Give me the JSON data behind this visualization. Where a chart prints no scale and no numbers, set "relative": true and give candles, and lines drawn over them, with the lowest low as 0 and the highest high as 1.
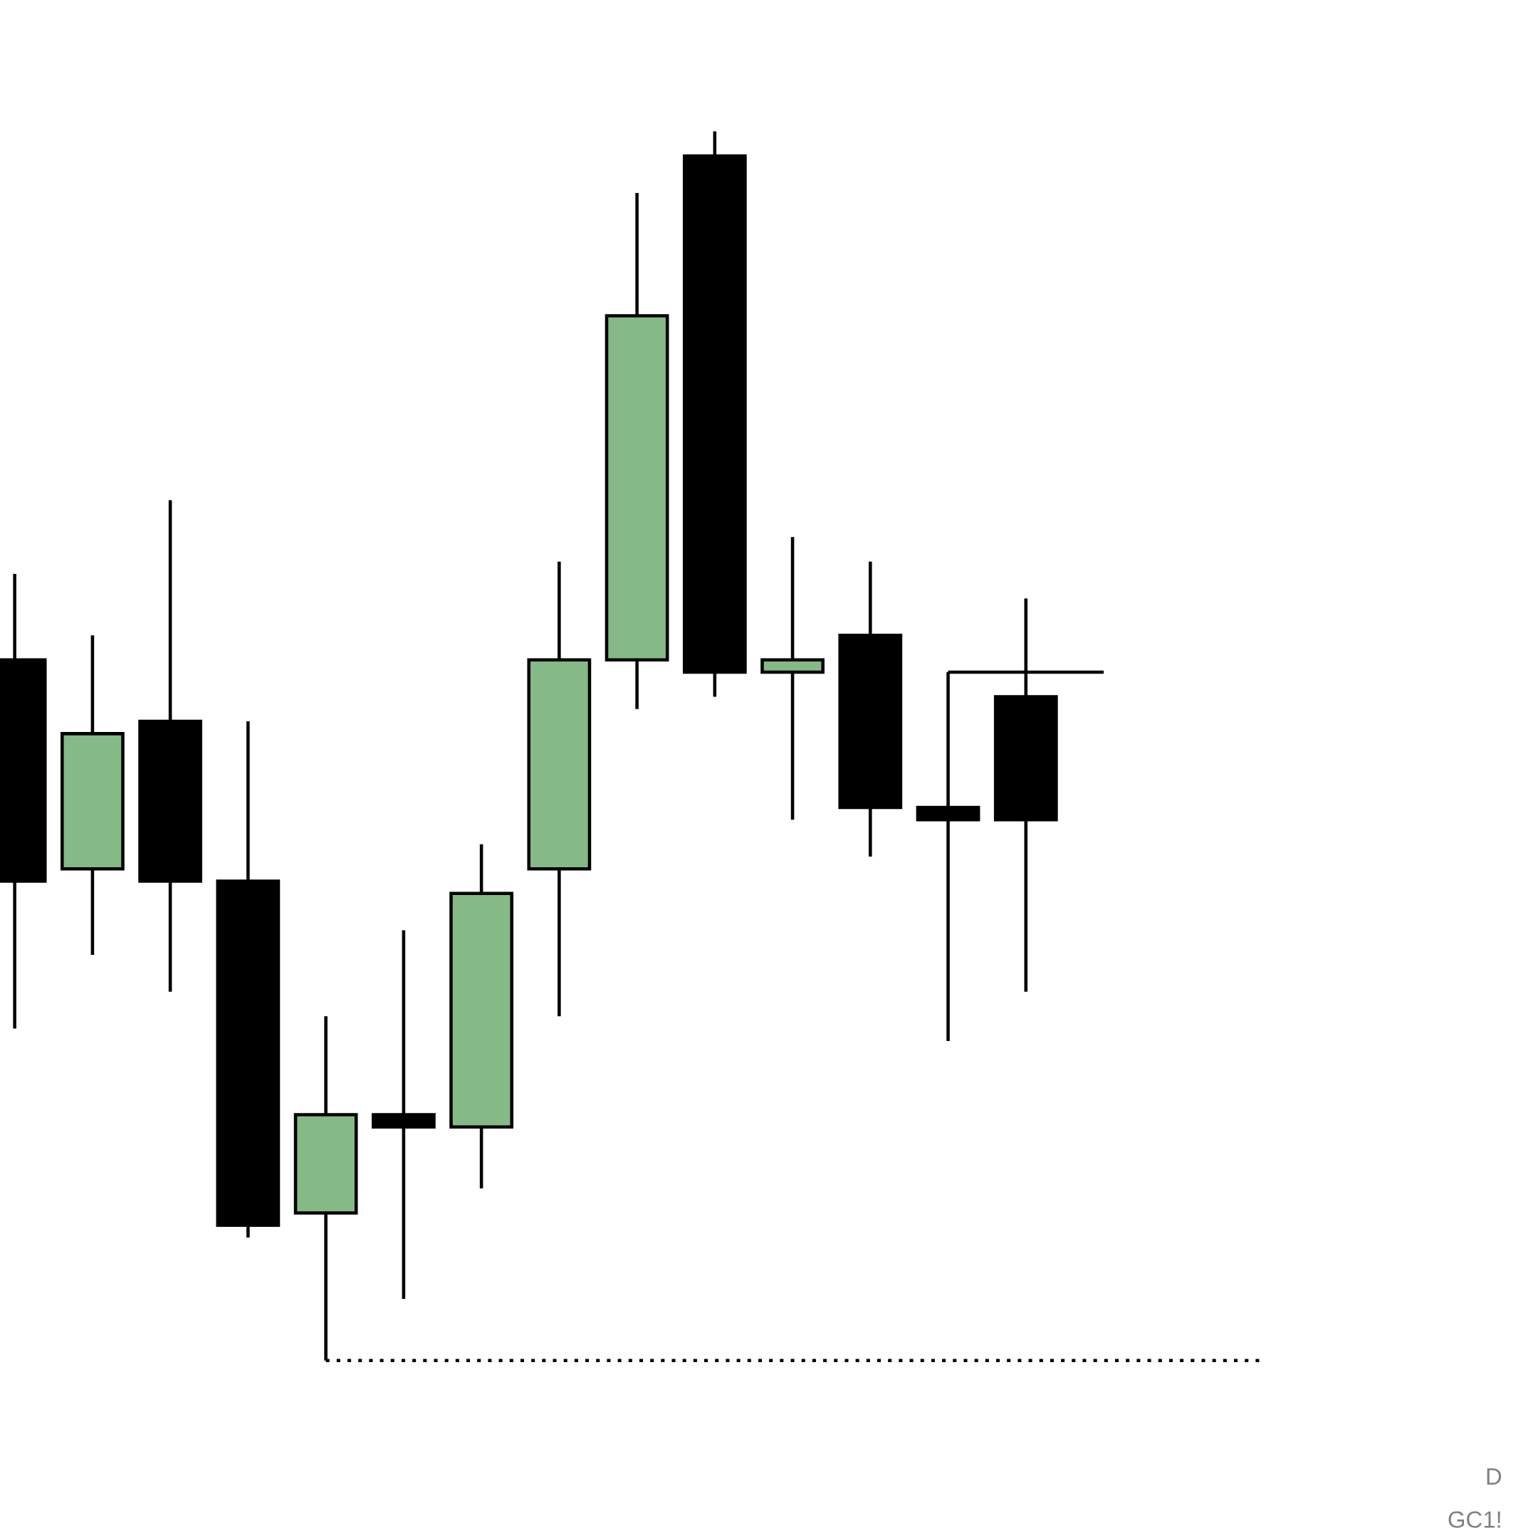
{
  "chart_data": {
    "type": "candlestick",
    "relative": true,
    "categories": [
      null,
      null,
      null,
      null,
      null,
      null,
      null,
      null,
      null,
      null,
      null,
      null,
      null,
      null,
      null,
      null,
      null
    ],
    "ohlc": [
      [
        0.57,
        0.64,
        0.27,
        0.39
      ],
      [
        0.4,
        0.59,
        0.33,
        0.51
      ],
      [
        0.52,
        0.7,
        0.3,
        0.39
      ],
      [
        0.39,
        0.52,
        0.1,
        0.11
      ],
      [
        0.12,
        0.28,
        0.0,
        0.2
      ],
      [
        0.2,
        0.35,
        0.05,
        0.19
      ],
      [
        0.19,
        0.42,
        0.14,
        0.38
      ],
      [
        0.4,
        0.65,
        0.28,
        0.57
      ],
      [
        0.57,
        0.95,
        0.53,
        0.85
      ],
      [
        0.98,
        1.0,
        0.54,
        0.56
      ],
      [
        0.56,
        0.67,
        0.44,
        0.57
      ],
      [
        0.59,
        0.65,
        0.41,
        0.45
      ],
      [
        0.45,
        0.56,
        0.26,
        0.44
      ],
      [
        0.54,
        0.62,
        0.3,
        0.44
      ],
      null,
      null,
      null
    ],
    "colors": [
      "#000000",
      "#85b985",
      "#000000",
      "#000000",
      "#85b985",
      "#000000",
      "#85b985",
      "#85b985",
      "#85b985",
      "#000000",
      "#85b985",
      "#000000",
      "#000000",
      "#000000",
      null,
      null,
      null
    ],
    "series": [
      {
        "type": "line",
        "values": [
          null,
          null,
          null,
          null,
          0.0,
          0.0,
          0.0,
          0.0,
          0.0,
          0.0,
          0.0,
          0.0,
          0.0,
          0.0,
          0.0,
          0.0,
          0.0
        ],
        "color": "#000000",
        "line_style": "dotted"
      },
      {
        "type": "line",
        "values": [
          null,
          null,
          null,
          null,
          null,
          null,
          null,
          null,
          null,
          null,
          null,
          null,
          0.56,
          0.56,
          0.56,
          null,
          null
        ],
        "color": "#000000",
        "line_style": "solid"
      }
    ],
    "annotations": [
      "D",
      "GC1!"
    ]
  }
}
